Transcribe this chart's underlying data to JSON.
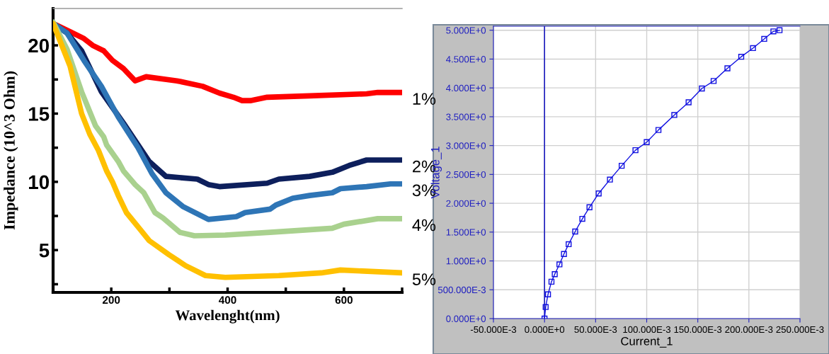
{
  "chart_data": [
    {
      "type": "line",
      "xlabel": "Wavelenght(nm)",
      "ylabel": "Impedance (10^3 Ohm)",
      "xlim": [
        100,
        700
      ],
      "ylim": [
        1.9,
        22.7
      ],
      "xticks": [
        {
          "value": 100,
          "label": null
        },
        200,
        {
          "value": 300,
          "label": null
        },
        400,
        {
          "value": 500,
          "label": null
        },
        600,
        {
          "value": 700,
          "label": null
        }
      ],
      "yticks": [
        {
          "value": 2.5,
          "label": null
        },
        5,
        {
          "value": 7.5,
          "label": null
        },
        10,
        {
          "value": 12.5,
          "label": null
        },
        15,
        {
          "value": 17.5,
          "label": null
        },
        20
      ],
      "grid": false,
      "legend": false,
      "series": [
        {
          "name": "1%",
          "color": "#ff0000",
          "x": [
            100,
            129,
            153,
            168,
            187,
            202,
            221,
            241,
            260,
            313,
            357,
            386,
            410,
            425,
            439,
            468,
            541,
            639,
            658,
            700
          ],
          "values": [
            21.6,
            21.0,
            20.5,
            20.0,
            19.6,
            18.9,
            18.3,
            17.4,
            17.7,
            17.4,
            17.0,
            16.5,
            16.2,
            15.95,
            15.95,
            16.2,
            16.3,
            16.45,
            16.55,
            16.55
          ]
        },
        {
          "name": "2%",
          "color": "#0d1f5c",
          "x": [
            100,
            124,
            149,
            183,
            221,
            265,
            294,
            348,
            367,
            386,
            468,
            488,
            541,
            580,
            609,
            639,
            700
          ],
          "values": [
            21.6,
            20.9,
            19.6,
            16.6,
            14.3,
            11.5,
            10.4,
            10.2,
            9.8,
            9.65,
            9.9,
            10.2,
            10.4,
            10.7,
            11.2,
            11.6,
            11.6
          ]
        },
        {
          "name": "3%",
          "color": "#2e75b6",
          "x": [
            100,
            124,
            153,
            183,
            212,
            246,
            270,
            294,
            323,
            367,
            415,
            430,
            473,
            483,
            512,
            541,
            580,
            594,
            639,
            680,
            700
          ],
          "values": [
            21.6,
            20.9,
            18.9,
            17.0,
            14.75,
            12.5,
            10.6,
            9.2,
            8.2,
            7.25,
            7.45,
            7.75,
            8.0,
            8.3,
            8.8,
            9.0,
            9.2,
            9.5,
            9.65,
            9.85,
            9.85
          ]
        },
        {
          "name": "4%",
          "color": "#a9d18e",
          "x": [
            100,
            124,
            149,
            173,
            187,
            192,
            212,
            221,
            241,
            256,
            275,
            289,
            318,
            343,
            396,
            473,
            580,
            600,
            658,
            700
          ],
          "values": [
            21.7,
            19.7,
            16.6,
            14.1,
            13.3,
            12.7,
            11.5,
            10.8,
            9.8,
            9.2,
            7.75,
            7.35,
            6.3,
            6.05,
            6.1,
            6.3,
            6.6,
            6.9,
            7.3,
            7.3
          ]
        },
        {
          "name": "5%",
          "color": "#ffc000",
          "x": [
            100,
            129,
            149,
            163,
            178,
            192,
            202,
            212,
            226,
            250,
            265,
            299,
            328,
            362,
            396,
            488,
            561,
            594,
            700
          ],
          "values": [
            21.6,
            18.5,
            15.0,
            13.5,
            12.3,
            10.8,
            10.0,
            9.0,
            7.75,
            6.5,
            5.7,
            4.67,
            3.85,
            3.13,
            3.0,
            3.13,
            3.33,
            3.54,
            3.33
          ]
        }
      ]
    },
    {
      "type": "line",
      "xlabel": "Current_1",
      "ylabel": "Voltage_1",
      "xlim": [
        -0.05,
        0.25
      ],
      "ylim": [
        0,
        5.07
      ],
      "xticks": [
        {
          "value": -0.05,
          "label": "-50.000E-3"
        },
        {
          "value": 0,
          "label": "0.000E+0"
        },
        {
          "value": 0.05,
          "label": "50.000E-3"
        },
        {
          "value": 0.1,
          "label": "100.000E-3"
        },
        {
          "value": 0.15,
          "label": "150.000E-3"
        },
        {
          "value": 0.2,
          "label": "200.000E-3"
        },
        {
          "value": 0.25,
          "label": "250.000E-3"
        }
      ],
      "yticks": [
        {
          "value": 0,
          "label": "0.000E+0"
        },
        {
          "value": 0.5,
          "label": "500.000E-3"
        },
        {
          "value": 1,
          "label": "1.000E+0"
        },
        {
          "value": 1.5,
          "label": "1.500E+0"
        },
        {
          "value": 2,
          "label": "2.000E+0"
        },
        {
          "value": 2.5,
          "label": "2.500E+0"
        },
        {
          "value": 3,
          "label": "3.000E+0"
        },
        {
          "value": 3.5,
          "label": "3.500E+0"
        },
        {
          "value": 4,
          "label": "4.000E+0"
        },
        {
          "value": 4.5,
          "label": "4.500E+0"
        },
        {
          "value": 5,
          "label": "5.000E+0"
        }
      ],
      "grid": true,
      "legend": false,
      "marker": "square",
      "ref_lines": [
        {
          "axis": "x",
          "value": 0,
          "color": "#2020c0"
        }
      ],
      "series": [
        {
          "color": "#1010e0",
          "x": [
            0,
            0.0011,
            0.0034,
            0.0068,
            0.01,
            0.0146,
            0.019,
            0.0236,
            0.03,
            0.037,
            0.044,
            0.053,
            0.064,
            0.0755,
            0.089,
            0.1,
            0.1115,
            0.127,
            0.141,
            0.154,
            0.1655,
            0.179,
            0.1925,
            0.204,
            0.215,
            0.224,
            0.23
          ],
          "values": [
            0,
            0.2,
            0.42,
            0.64,
            0.77,
            0.94,
            1.12,
            1.29,
            1.51,
            1.73,
            1.93,
            2.17,
            2.41,
            2.65,
            2.92,
            3.06,
            3.27,
            3.53,
            3.75,
            3.99,
            4.12,
            4.34,
            4.54,
            4.69,
            4.85,
            4.98,
            5.0
          ]
        }
      ]
    }
  ]
}
